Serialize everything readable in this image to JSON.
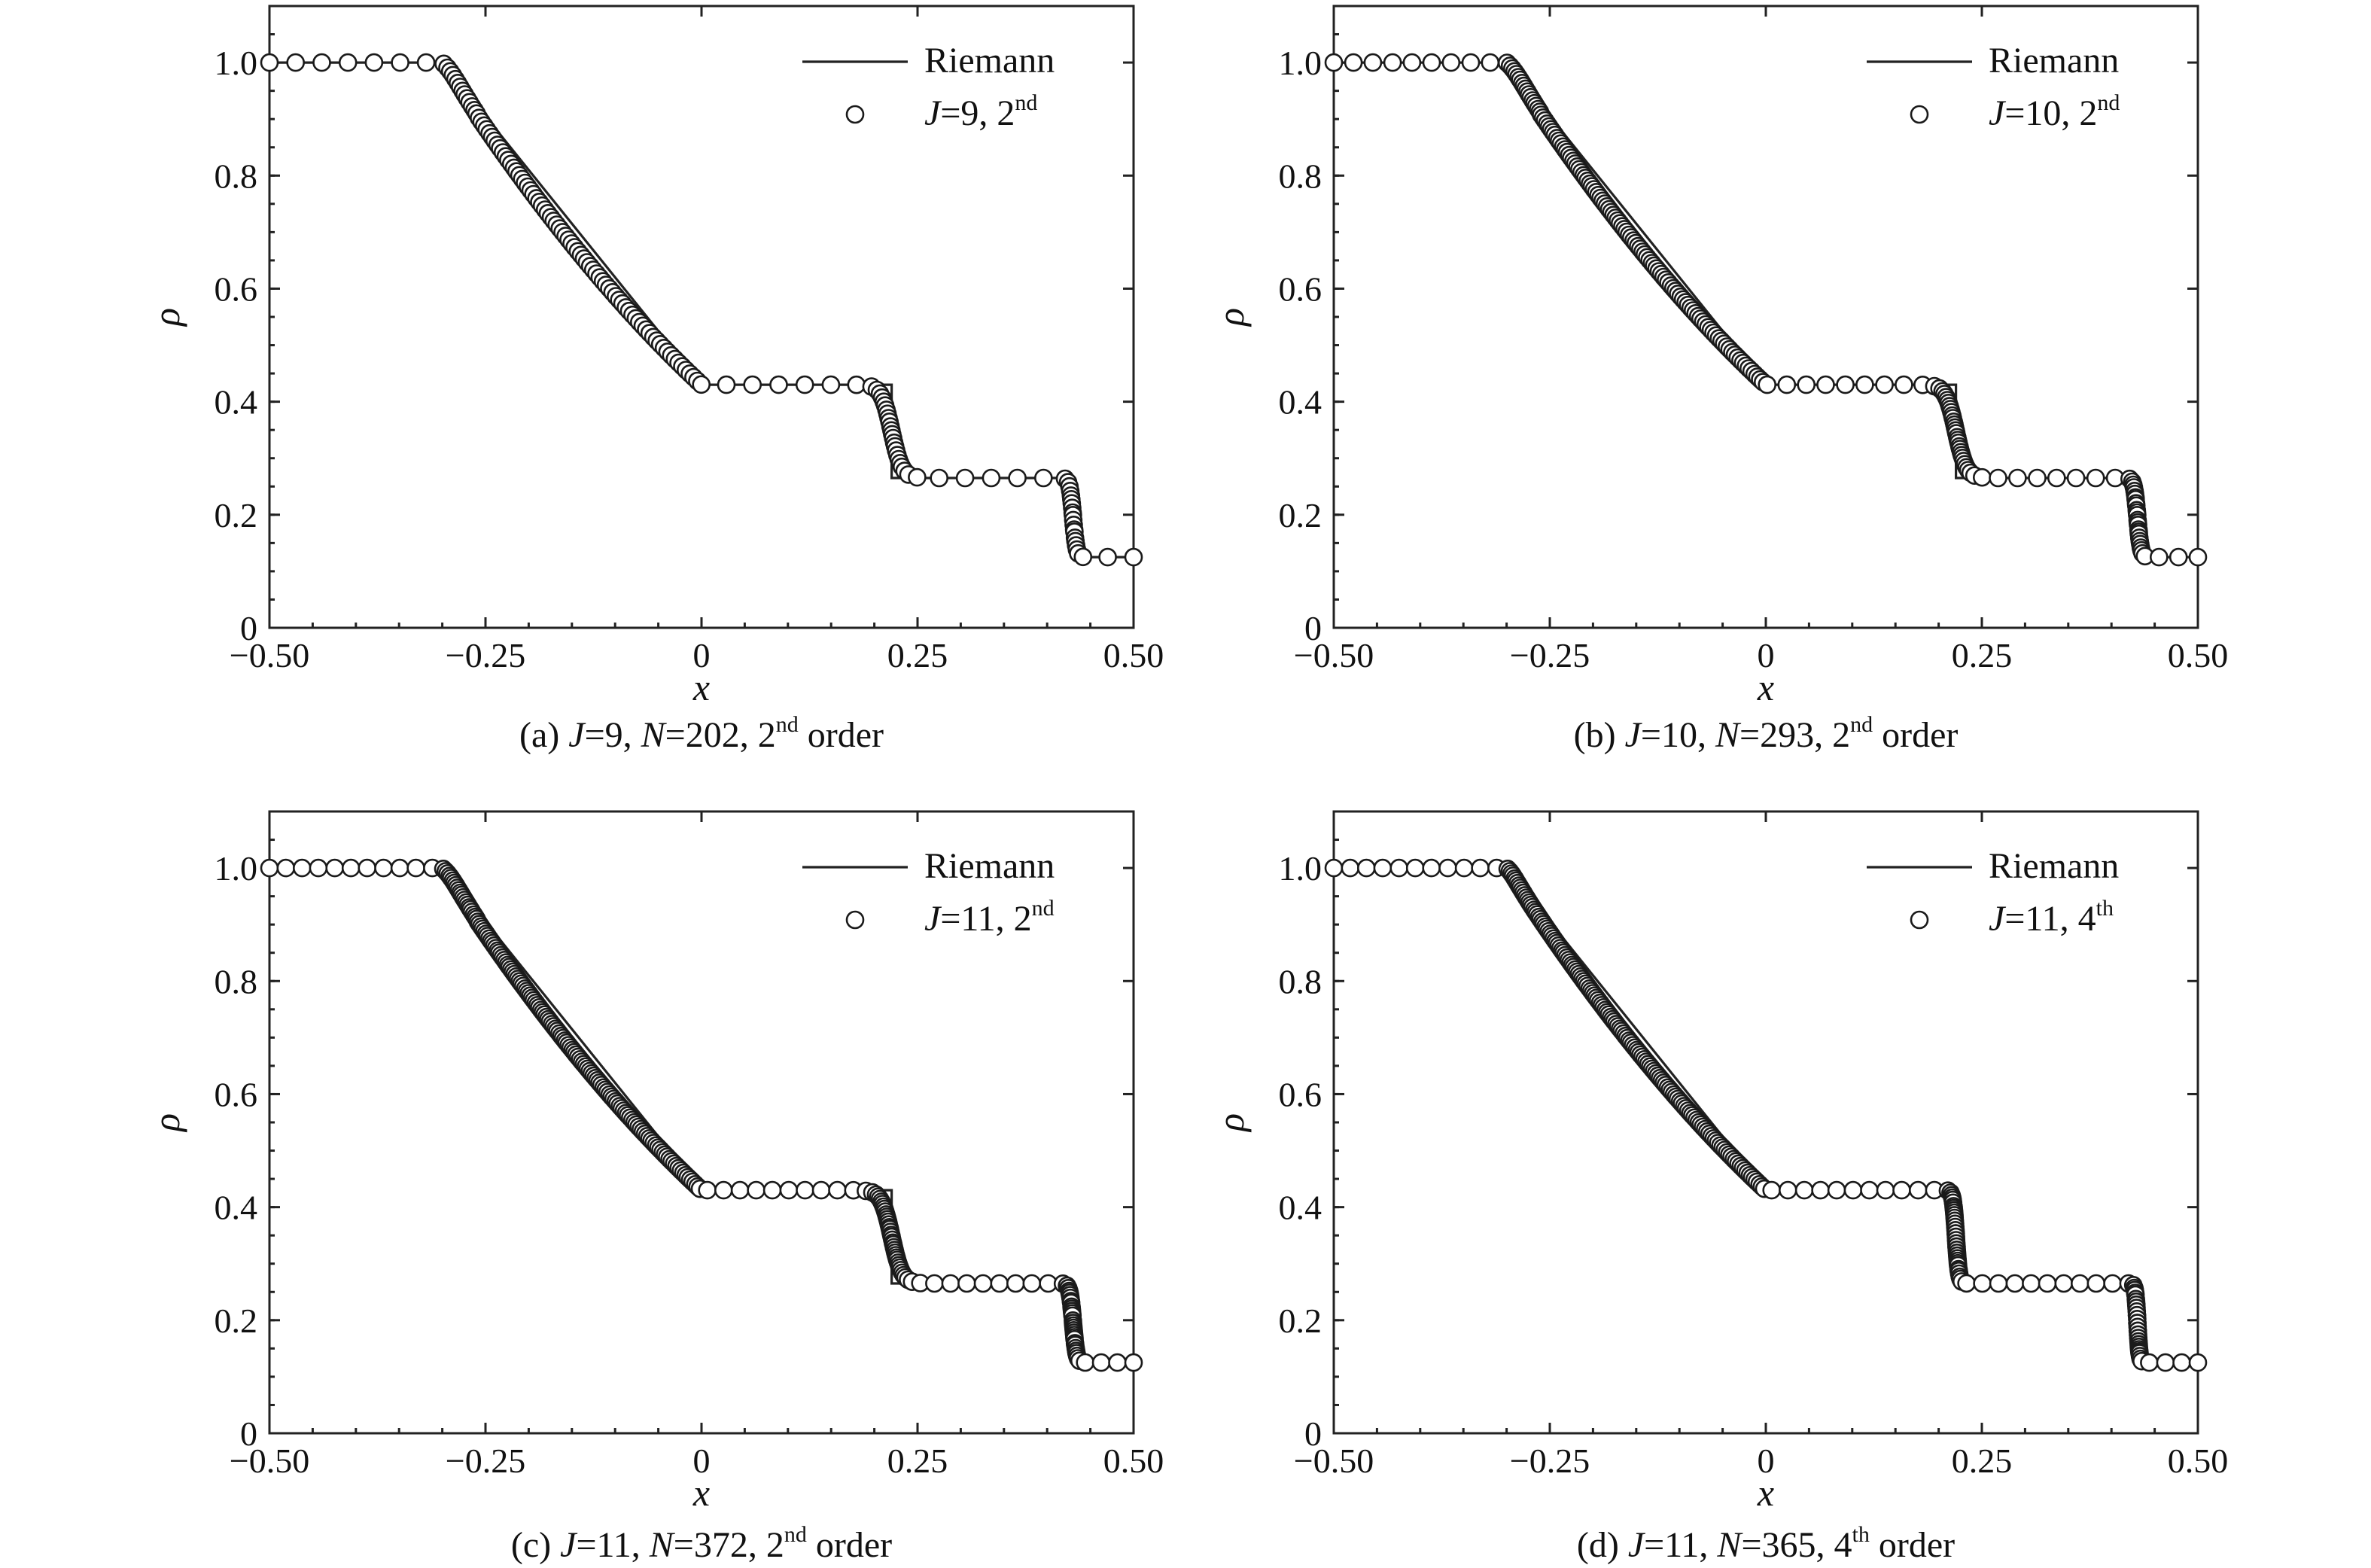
{
  "colors": {
    "line": "#222222",
    "marker_fill": "#ffffff",
    "marker_stroke": "#1a1a1a",
    "background": "#ffffff"
  },
  "chart_data": [
    {
      "type": "line",
      "xlabel": "x",
      "ylabel": "ρ",
      "xlim": [
        -0.5,
        0.5
      ],
      "ylim": [
        0,
        1.1
      ],
      "xticks": [
        "−0.50",
        "−0.25",
        "0",
        "0.25",
        "0.50"
      ],
      "yticks": [
        "0",
        "0.2",
        "0.4",
        "0.6",
        "0.8",
        "1.0"
      ],
      "legend_position": "top-right",
      "caption": {
        "pre": "(a) ",
        "J": "J",
        "Jval": "=9, ",
        "N": "N",
        "Nval": "=202, 2",
        "sup": "nd",
        "post": " order"
      },
      "series": [
        {
          "name": "Riemann",
          "type": "line",
          "x": [
            -0.5,
            -0.3,
            0.0,
            0.22,
            0.22,
            0.43,
            0.43,
            0.5
          ],
          "y": [
            1.0,
            1.0,
            0.43,
            0.43,
            0.265,
            0.265,
            0.125,
            0.125
          ]
        },
        {
          "name": "J=9, 2nd",
          "label_J": "J",
          "label_rest": "=9, 2",
          "label_sup": "nd",
          "type": "scatter",
          "scheme": "2nd",
          "x_sample": [
            -0.5,
            -0.4,
            -0.35,
            -0.3,
            -0.2,
            -0.1,
            0.0,
            0.1,
            0.2,
            0.25,
            0.3,
            0.4,
            0.43,
            0.5
          ],
          "y_sample": [
            1.0,
            1.0,
            0.995,
            0.97,
            0.78,
            0.6,
            0.43,
            0.43,
            0.38,
            0.27,
            0.265,
            0.265,
            0.13,
            0.125
          ]
        }
      ]
    },
    {
      "type": "line",
      "xlabel": "x",
      "ylabel": "ρ",
      "xlim": [
        -0.5,
        0.5
      ],
      "ylim": [
        0,
        1.1
      ],
      "xticks": [
        "−0.50",
        "−0.25",
        "0",
        "0.25",
        "0.50"
      ],
      "yticks": [
        "0",
        "0.2",
        "0.4",
        "0.6",
        "0.8",
        "1.0"
      ],
      "legend_position": "top-right",
      "caption": {
        "pre": "(b) ",
        "J": "J",
        "Jval": "=10, ",
        "N": "N",
        "Nval": "=293, 2",
        "sup": "nd",
        "post": " order"
      },
      "series": [
        {
          "name": "Riemann",
          "type": "line",
          "x": [
            -0.5,
            -0.3,
            0.0,
            0.22,
            0.22,
            0.43,
            0.43,
            0.5
          ],
          "y": [
            1.0,
            1.0,
            0.43,
            0.43,
            0.265,
            0.265,
            0.125,
            0.125
          ]
        },
        {
          "name": "J=10, 2nd",
          "label_J": "J",
          "label_rest": "=10, 2",
          "label_sup": "nd",
          "type": "scatter",
          "scheme": "2nd",
          "x_sample": [
            -0.5,
            -0.4,
            -0.35,
            -0.3,
            -0.2,
            -0.1,
            0.0,
            0.1,
            0.2,
            0.25,
            0.3,
            0.4,
            0.43,
            0.5
          ],
          "y_sample": [
            1.0,
            1.0,
            0.998,
            0.98,
            0.78,
            0.6,
            0.43,
            0.43,
            0.39,
            0.27,
            0.265,
            0.265,
            0.13,
            0.125
          ]
        }
      ]
    },
    {
      "type": "line",
      "xlabel": "x",
      "ylabel": "ρ",
      "xlim": [
        -0.5,
        0.5
      ],
      "ylim": [
        0,
        1.1
      ],
      "xticks": [
        "−0.50",
        "−0.25",
        "0",
        "0.25",
        "0.50"
      ],
      "yticks": [
        "0",
        "0.2",
        "0.4",
        "0.6",
        "0.8",
        "1.0"
      ],
      "legend_position": "top-right",
      "caption": {
        "pre": "(c) ",
        "J": "J",
        "Jval": "=11, ",
        "N": "N",
        "Nval": "=372, 2",
        "sup": "nd",
        "post": " order"
      },
      "series": [
        {
          "name": "Riemann",
          "type": "line",
          "x": [
            -0.5,
            -0.3,
            0.0,
            0.22,
            0.22,
            0.43,
            0.43,
            0.5
          ],
          "y": [
            1.0,
            1.0,
            0.43,
            0.43,
            0.265,
            0.265,
            0.125,
            0.125
          ]
        },
        {
          "name": "J=11, 2nd",
          "label_J": "J",
          "label_rest": "=11, 2",
          "label_sup": "nd",
          "type": "scatter",
          "scheme": "2nd",
          "x_sample": [
            -0.5,
            -0.4,
            -0.35,
            -0.3,
            -0.2,
            -0.1,
            0.0,
            0.1,
            0.2,
            0.25,
            0.3,
            0.4,
            0.43,
            0.5
          ],
          "y_sample": [
            1.0,
            1.0,
            0.999,
            0.985,
            0.78,
            0.6,
            0.43,
            0.43,
            0.4,
            0.27,
            0.265,
            0.265,
            0.13,
            0.125
          ]
        }
      ]
    },
    {
      "type": "line",
      "xlabel": "x",
      "ylabel": "ρ",
      "xlim": [
        -0.5,
        0.5
      ],
      "ylim": [
        0,
        1.1
      ],
      "xticks": [
        "−0.50",
        "−0.25",
        "0",
        "0.25",
        "0.50"
      ],
      "yticks": [
        "0",
        "0.2",
        "0.4",
        "0.6",
        "0.8",
        "1.0"
      ],
      "legend_position": "top-right",
      "caption": {
        "pre": "(d) ",
        "J": "J",
        "Jval": "=11, ",
        "N": "N",
        "Nval": "=365, 4",
        "sup": "th",
        "post": " order"
      },
      "series": [
        {
          "name": "Riemann",
          "type": "line",
          "x": [
            -0.5,
            -0.3,
            0.0,
            0.22,
            0.22,
            0.43,
            0.43,
            0.5
          ],
          "y": [
            1.0,
            1.0,
            0.43,
            0.43,
            0.265,
            0.265,
            0.125,
            0.125
          ]
        },
        {
          "name": "J=11, 4th",
          "label_J": "J",
          "label_rest": "=11, 4",
          "label_sup": "th",
          "type": "scatter",
          "scheme": "4th",
          "x_sample": [
            -0.5,
            -0.4,
            -0.35,
            -0.3,
            -0.2,
            -0.1,
            0.0,
            0.1,
            0.2,
            0.22,
            0.25,
            0.4,
            0.43,
            0.5
          ],
          "y_sample": [
            1.0,
            1.0,
            1.0,
            0.99,
            0.78,
            0.6,
            0.43,
            0.43,
            0.43,
            0.3,
            0.265,
            0.265,
            0.13,
            0.125
          ]
        }
      ]
    }
  ]
}
